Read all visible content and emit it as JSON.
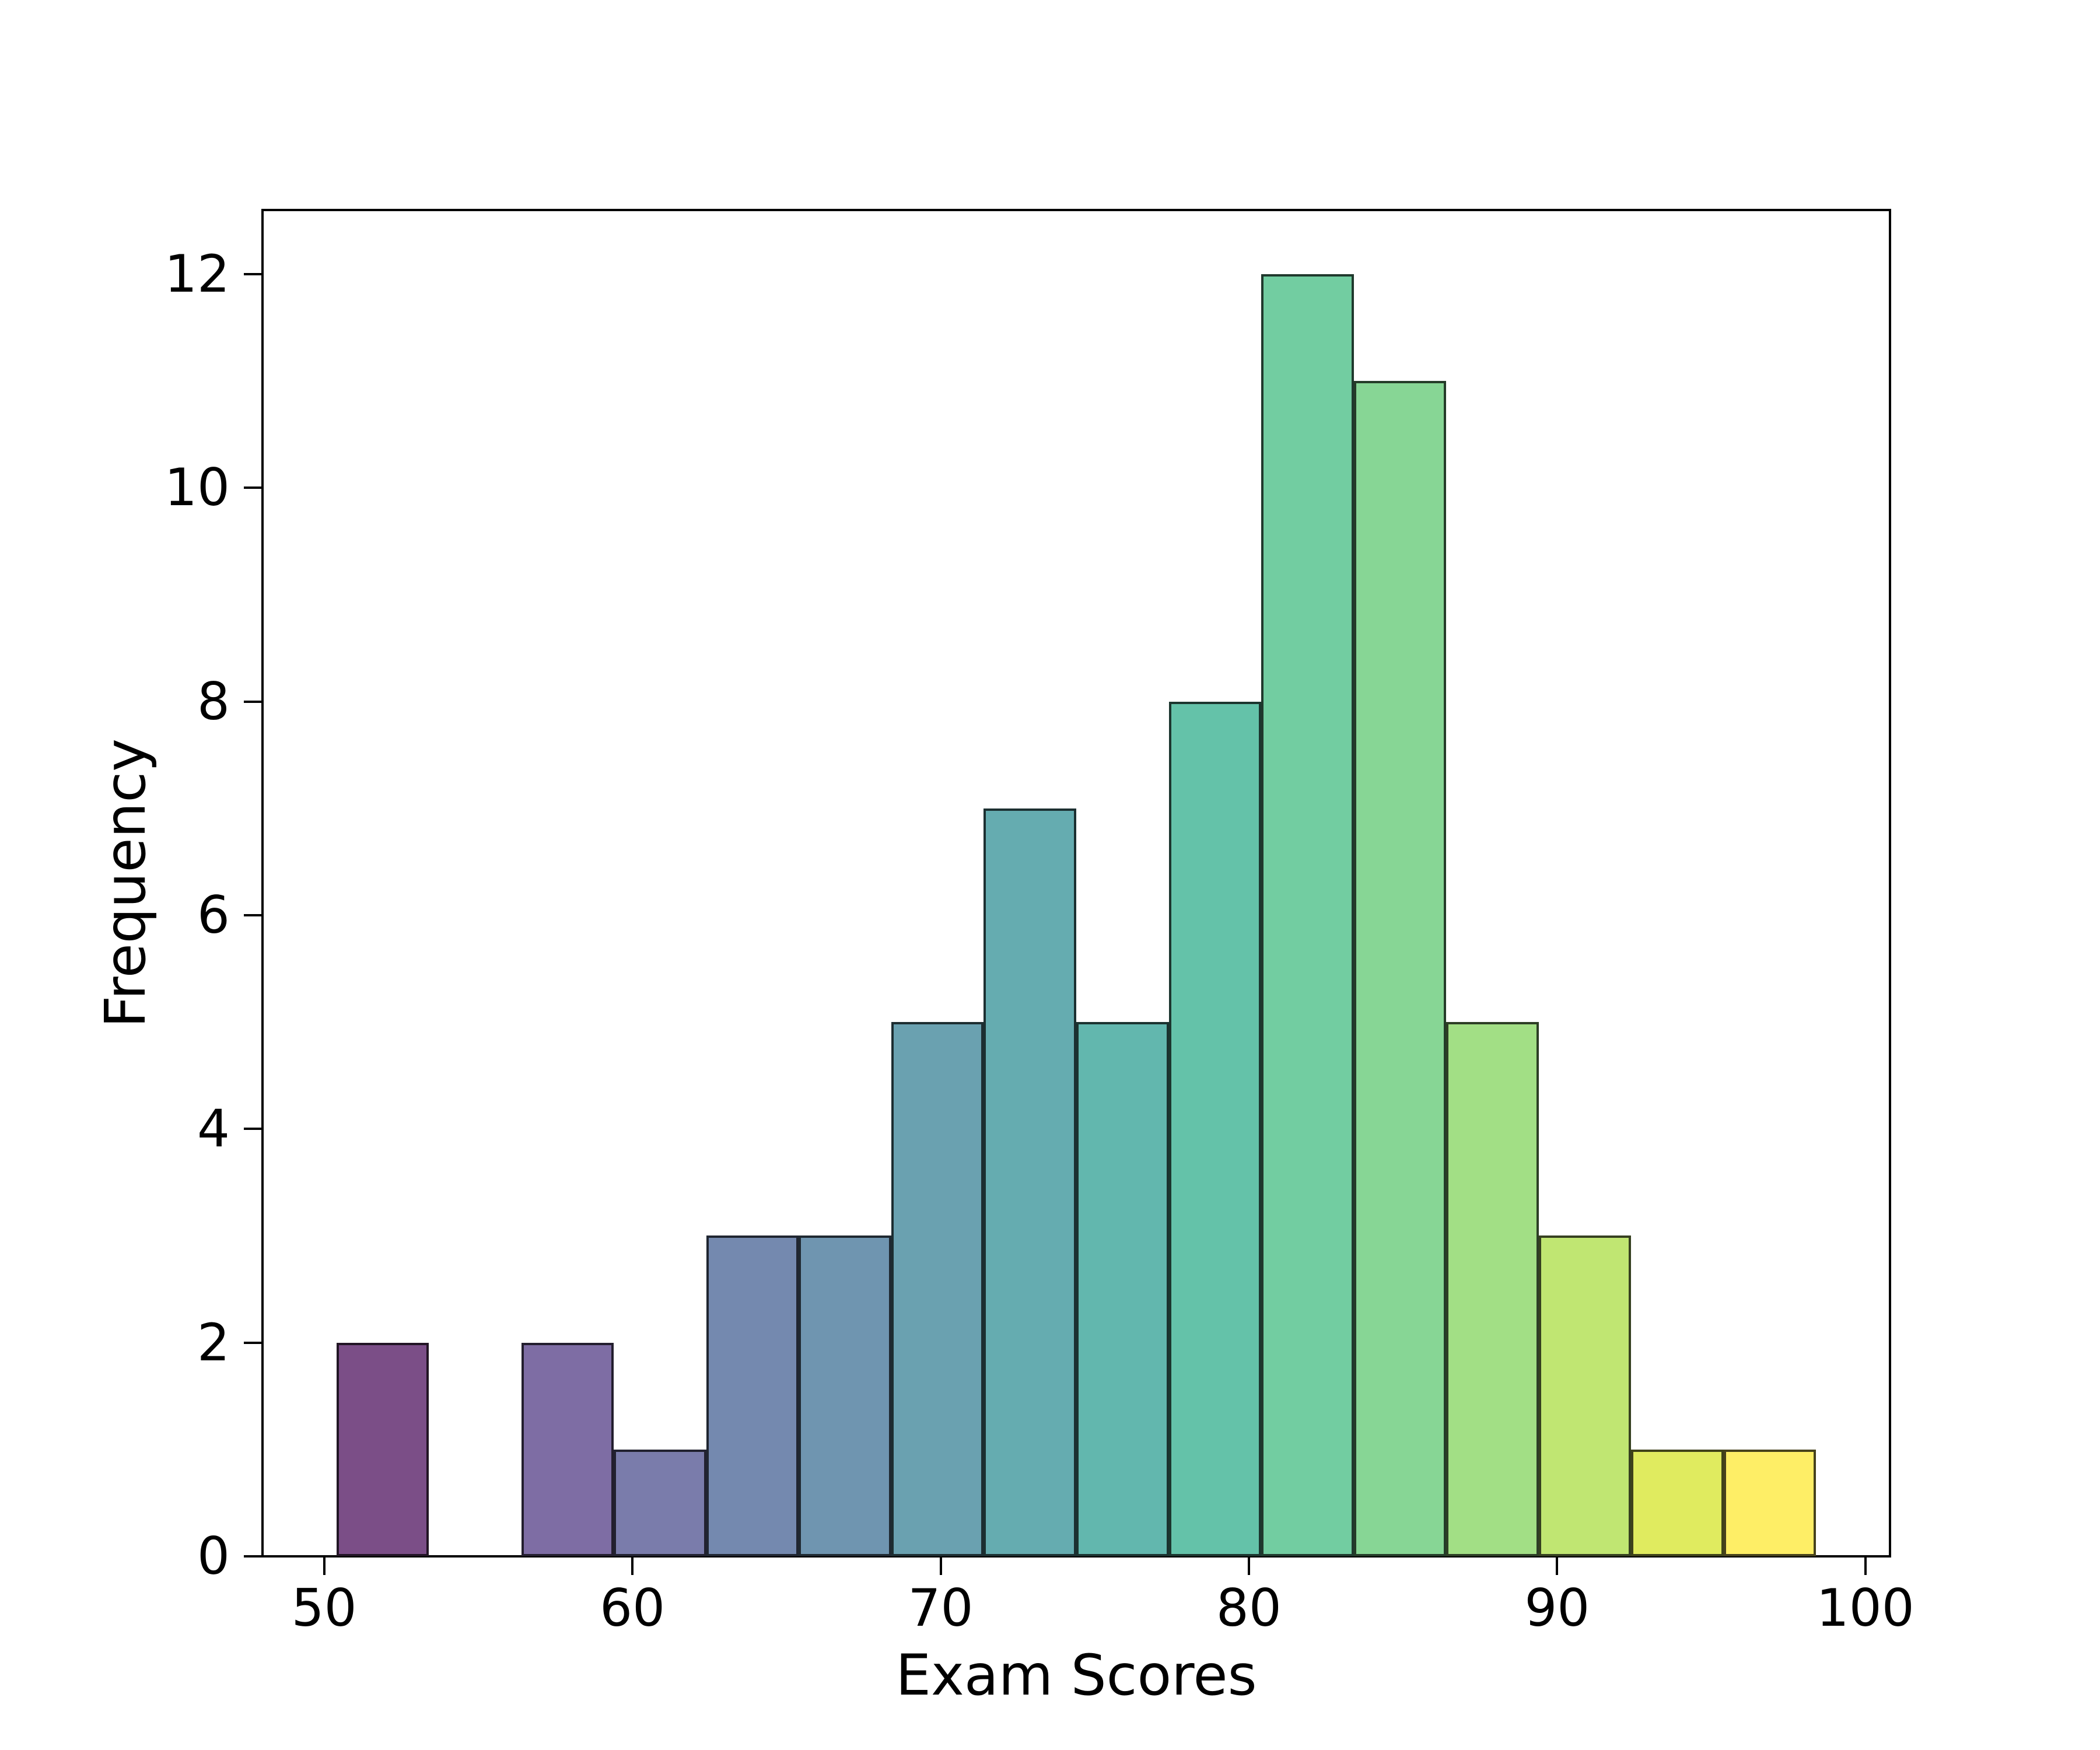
{
  "chart_data": {
    "type": "bar",
    "subtype": "histogram",
    "title": "",
    "xlabel": "Exam Scores",
    "ylabel": "Frequency",
    "bin_start": 50.4,
    "bin_width": 3.0,
    "bin_count": 16,
    "frequencies": [
      2,
      0,
      2,
      1,
      3,
      3,
      5,
      7,
      5,
      8,
      12,
      11,
      5,
      3,
      1,
      1
    ],
    "x_ticks": [
      50,
      60,
      70,
      80,
      90,
      100
    ],
    "y_ticks": [
      0,
      2,
      4,
      6,
      8,
      10,
      12
    ],
    "xlim": [
      48.0,
      100.8
    ],
    "ylim": [
      0,
      12.6
    ],
    "grid": false,
    "legend": null,
    "colormap": "viridis",
    "bar_alpha": 0.7,
    "bar_fill_colors": [
      "#7B4E87",
      "#7F5F98",
      "#7E6DA4",
      "#7A7CAB",
      "#7489AF",
      "#6F95B0",
      "#6AA1B0",
      "#65ACB0",
      "#62B7AE",
      "#64C2A9",
      "#72CDA1",
      "#87D695",
      "#A2DF85",
      "#C0E672",
      "#E0EB5F",
      "#FEEE66"
    ],
    "bar_edge_color": "rgba(0,0,0,0.72)",
    "axis_color": "#000000",
    "background_color": "#ffffff"
  }
}
